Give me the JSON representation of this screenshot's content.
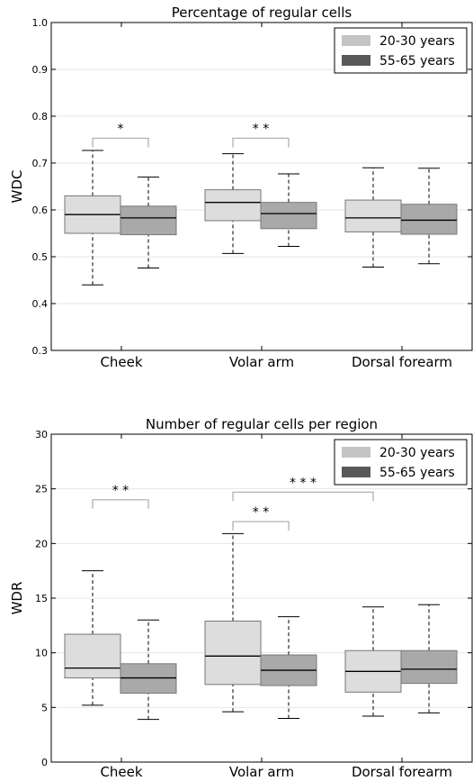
{
  "colors": {
    "young_legend": "#c4c4c4",
    "old_legend": "#595959",
    "young_box": "#dddddd",
    "old_box": "#a9a9a9",
    "bracket": "#aaaaaa"
  },
  "chart_data": [
    {
      "type": "box",
      "title": "Percentage of regular cells",
      "ylabel": "WDC",
      "xlabel": "",
      "ylim": [
        0.3,
        1.0
      ],
      "yticks": [
        "0.3",
        "0.4",
        "0.5",
        "0.6",
        "0.7",
        "0.8",
        "0.9",
        "1.0"
      ],
      "grid": true,
      "legend_position": "top-right",
      "categories": [
        "Cheek",
        "Volar arm",
        "Dorsal forearm"
      ],
      "series": [
        {
          "name": "20-30 years",
          "boxes": [
            {
              "min": 0.44,
              "q1": 0.55,
              "median": 0.59,
              "q3": 0.63,
              "max": 0.727
            },
            {
              "min": 0.507,
              "q1": 0.577,
              "median": 0.616,
              "q3": 0.643,
              "max": 0.72
            },
            {
              "min": 0.478,
              "q1": 0.553,
              "median": 0.583,
              "q3": 0.621,
              "max": 0.69
            }
          ]
        },
        {
          "name": "55-65 years",
          "boxes": [
            {
              "min": 0.476,
              "q1": 0.547,
              "median": 0.583,
              "q3": 0.608,
              "max": 0.67
            },
            {
              "min": 0.522,
              "q1": 0.56,
              "median": 0.592,
              "q3": 0.616,
              "max": 0.677
            },
            {
              "min": 0.485,
              "q1": 0.548,
              "median": 0.578,
              "q3": 0.612,
              "max": 0.689
            }
          ]
        }
      ],
      "annotations": [
        {
          "label": "*",
          "from": [
            0,
            0
          ],
          "to": [
            0,
            1
          ],
          "y": 0.753
        },
        {
          "label": "* *",
          "from": [
            1,
            0
          ],
          "to": [
            1,
            1
          ],
          "y": 0.753
        }
      ]
    },
    {
      "type": "box",
      "title": "Number of regular cells per region",
      "ylabel": "WDR",
      "xlabel": "",
      "ylim": [
        0,
        30
      ],
      "yticks": [
        "0",
        "5",
        "10",
        "15",
        "20",
        "25",
        "30"
      ],
      "grid": true,
      "legend_position": "top-right",
      "categories": [
        "Cheek",
        "Volar arm",
        "Dorsal forearm"
      ],
      "series": [
        {
          "name": "20-30 years",
          "boxes": [
            {
              "min": 5.2,
              "q1": 7.7,
              "median": 8.6,
              "q3": 11.7,
              "max": 17.5
            },
            {
              "min": 4.6,
              "q1": 7.1,
              "median": 9.7,
              "q3": 12.9,
              "max": 20.9
            },
            {
              "min": 4.2,
              "q1": 6.4,
              "median": 8.3,
              "q3": 10.2,
              "max": 14.2
            }
          ]
        },
        {
          "name": "55-65 years",
          "boxes": [
            {
              "min": 3.9,
              "q1": 6.3,
              "median": 7.7,
              "q3": 9.0,
              "max": 13.0
            },
            {
              "min": 4.0,
              "q1": 7.0,
              "median": 8.4,
              "q3": 9.8,
              "max": 13.3
            },
            {
              "min": 4.5,
              "q1": 7.2,
              "median": 8.5,
              "q3": 10.2,
              "max": 14.4
            }
          ]
        }
      ],
      "annotations": [
        {
          "label": "* *",
          "from": [
            0,
            0
          ],
          "to": [
            0,
            1
          ],
          "y": 24.0
        },
        {
          "label": "* *",
          "from": [
            1,
            0
          ],
          "to": [
            1,
            1
          ],
          "y": 22.0
        },
        {
          "label": "* * *",
          "from": [
            1,
            0
          ],
          "to": [
            2,
            0
          ],
          "y": 24.7
        }
      ]
    }
  ]
}
